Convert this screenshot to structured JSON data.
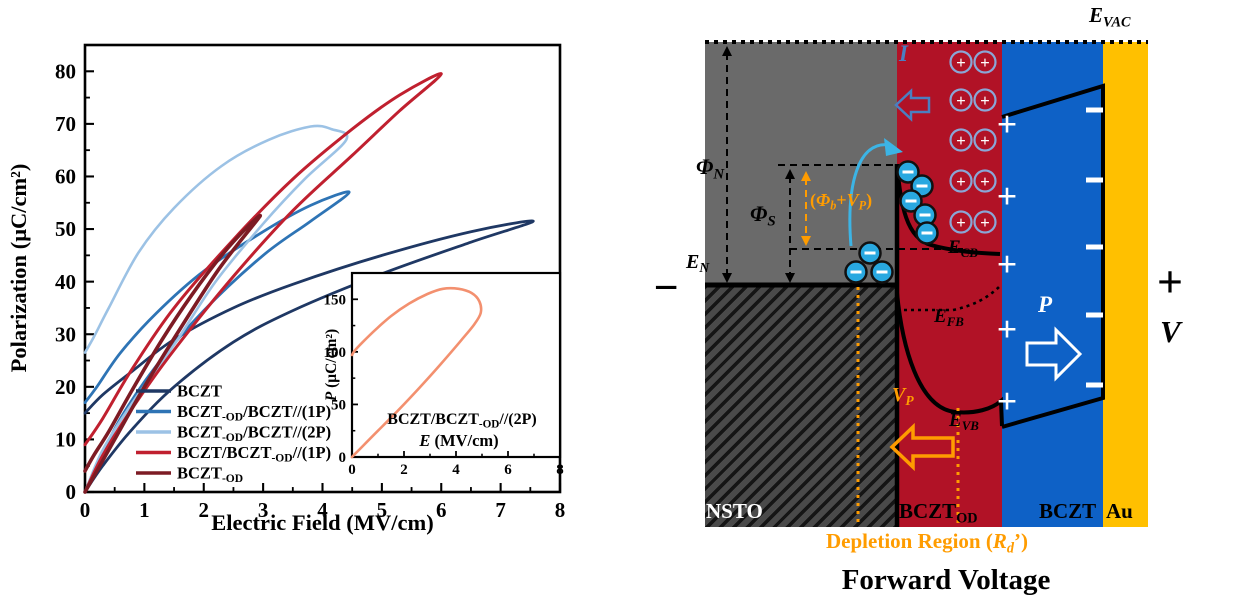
{
  "colors": {
    "nsto_gray": "#6a6a6a",
    "hatch_base": "#4a4a4a",
    "hatch_stripe": "#151515",
    "bczt_od_red": "#b11226",
    "bczt_blue": "#0e61c6",
    "au_gold": "#ffc000",
    "accent_orange": "#ff9c00",
    "electron_blue": "#29a8e0",
    "hole_ring": "#8aa6d6",
    "current_arrow_blue": "#4a7fc1",
    "navy": "#1f3864",
    "steel_blue": "#2e74b5",
    "light_blue": "#9cc2e5",
    "red": "#c0202f",
    "maroon": "#7d1b24",
    "salmon": "#f3906f"
  },
  "chart_data": [
    {
      "type": "line",
      "title": "",
      "xlabel": "Electric Field (MV/cm)",
      "ylabel": "Polarization (μC/cm²)",
      "xlim": [
        0,
        8
      ],
      "ylim": [
        0,
        85
      ],
      "xticks": [
        0,
        1,
        2,
        3,
        4,
        5,
        6,
        7,
        8
      ],
      "yticks": [
        0,
        10,
        20,
        30,
        40,
        50,
        60,
        70,
        80
      ],
      "grid": false,
      "legend_position": "lower left inside",
      "series": [
        {
          "name": "BCZT",
          "name_rich": [
            [
              "BCZT",
              0
            ]
          ],
          "color": "#1f3864",
          "width": 2.8,
          "loop": [
            [
              0,
              0
            ],
            [
              0.3,
              5
            ],
            [
              0.8,
              12
            ],
            [
              1.5,
              20
            ],
            [
              2.5,
              28.5
            ],
            [
              3.5,
              34.5
            ],
            [
              5,
              41.5
            ],
            [
              6.5,
              47.5
            ],
            [
              7.55,
              51.5
            ],
            [
              6.5,
              49.5
            ],
            [
              5,
              45
            ],
            [
              3.5,
              39.5
            ],
            [
              2.5,
              35
            ],
            [
              1.5,
              29
            ],
            [
              0.8,
              23
            ],
            [
              0.3,
              18.5
            ],
            [
              0,
              15
            ]
          ]
        },
        {
          "name": "BCZT-OD/BCZT//(1P)",
          "name_rich": [
            [
              "BCZT",
              0
            ],
            [
              "-OD",
              1
            ],
            [
              "/BCZT//(1P)",
              0
            ]
          ],
          "color": "#2e74b5",
          "width": 2.8,
          "loop": [
            [
              0,
              0
            ],
            [
              0.2,
              5
            ],
            [
              0.6,
              14
            ],
            [
              1.2,
              24
            ],
            [
              2,
              34.5
            ],
            [
              3,
              45
            ],
            [
              3.8,
              51.5
            ],
            [
              4.45,
              57
            ],
            [
              3.8,
              54.5
            ],
            [
              3,
              49.5
            ],
            [
              2,
              42
            ],
            [
              1.2,
              34
            ],
            [
              0.6,
              26.5
            ],
            [
              0.2,
              20
            ],
            [
              0,
              17
            ]
          ]
        },
        {
          "name": "BCZT-OD/BCZT//(2P)",
          "name_rich": [
            [
              "BCZT",
              0
            ],
            [
              "-OD",
              1
            ],
            [
              "/BCZT//(2P)",
              0
            ]
          ],
          "color": "#9cc2e5",
          "width": 2.6,
          "loop": [
            [
              0,
              0
            ],
            [
              0.3,
              8
            ],
            [
              0.8,
              17
            ],
            [
              1.5,
              28
            ],
            [
              2.2,
              40
            ],
            [
              3,
              51
            ],
            [
              3.7,
              59.5
            ],
            [
              4.4,
              67
            ],
            [
              4.15,
              69
            ],
            [
              3.8,
              69.5
            ],
            [
              3.1,
              67
            ],
            [
              2.3,
              62
            ],
            [
              1.5,
              54
            ],
            [
              0.9,
              45.5
            ],
            [
              0.4,
              35
            ],
            [
              0.15,
              29.5
            ],
            [
              0,
              26.5
            ]
          ]
        },
        {
          "name": "BCZT/BCZT-OD//(1P)",
          "name_rich": [
            [
              "BCZT/BCZT",
              0
            ],
            [
              "-OD",
              1
            ],
            [
              "//(1P)",
              0
            ]
          ],
          "color": "#c0202f",
          "width": 3.0,
          "loop": [
            [
              0,
              0
            ],
            [
              0.3,
              7
            ],
            [
              0.8,
              16
            ],
            [
              1.5,
              27
            ],
            [
              2.5,
              41
            ],
            [
              3.5,
              53.5
            ],
            [
              4.5,
              64
            ],
            [
              5.3,
              72.5
            ],
            [
              6.0,
              79.5
            ],
            [
              5.3,
              75.5
            ],
            [
              4.5,
              69
            ],
            [
              3.5,
              59.5
            ],
            [
              2.5,
              48
            ],
            [
              1.5,
              35
            ],
            [
              0.8,
              23.5
            ],
            [
              0.3,
              14
            ],
            [
              0,
              9
            ]
          ]
        },
        {
          "name": "BCZT-OD",
          "name_rich": [
            [
              "BCZT",
              0
            ],
            [
              "-OD",
              1
            ]
          ],
          "color": "#7d1b24",
          "width": 3.6,
          "loop": [
            [
              0,
              0
            ],
            [
              0.15,
              3
            ],
            [
              0.5,
              10
            ],
            [
              1,
              20
            ],
            [
              1.6,
              31
            ],
            [
              2.2,
              41.5
            ],
            [
              2.6,
              47.5
            ],
            [
              2.95,
              52.5
            ],
            [
              2.7,
              50
            ],
            [
              2.3,
              45
            ],
            [
              1.8,
              37.5
            ],
            [
              1.3,
              29
            ],
            [
              0.8,
              19.5
            ],
            [
              0.4,
              11.5
            ],
            [
              0.15,
              7
            ],
            [
              0,
              4
            ]
          ]
        }
      ]
    },
    {
      "type": "line",
      "inset": true,
      "label": "BCZT/BCZT-OD//(2P)",
      "label_rich": [
        [
          "BCZT/BCZT",
          0
        ],
        [
          "-OD",
          1
        ],
        [
          "//(2P)",
          0
        ]
      ],
      "xlabel": "E (MV/cm)",
      "xlabel_rich": [
        [
          "E",
          2
        ],
        [
          " (MV/cm)",
          0
        ]
      ],
      "ylabel": "P (μC/cm²)",
      "ylabel_rich": [
        [
          "P",
          2
        ],
        [
          " (μC/cm²)",
          0
        ]
      ],
      "xlim": [
        0,
        8
      ],
      "ylim": [
        0,
        175
      ],
      "xticks": [
        0,
        2,
        4,
        6,
        8
      ],
      "yticks": [
        0,
        50,
        100,
        150
      ],
      "series": [
        {
          "name": "BCZT/BCZT-OD//(2P)",
          "color": "#f3906f",
          "width": 2.6,
          "loop": [
            [
              0,
              0
            ],
            [
              0.4,
              10
            ],
            [
              1,
              25
            ],
            [
              1.8,
              45
            ],
            [
              2.6,
              66
            ],
            [
              3.4,
              88
            ],
            [
              4.2,
              111
            ],
            [
              4.7,
              126
            ],
            [
              4.95,
              137
            ],
            [
              4.9,
              148
            ],
            [
              4.6,
              156
            ],
            [
              4.1,
              160
            ],
            [
              3.5,
              160
            ],
            [
              2.9,
              155
            ],
            [
              2.2,
              146
            ],
            [
              1.5,
              134
            ],
            [
              0.9,
              121
            ],
            [
              0.4,
              109
            ],
            [
              0.1,
              101
            ],
            [
              0,
              97
            ]
          ]
        }
      ]
    }
  ],
  "diagram": {
    "caption": "Forward Voltage",
    "depletion_caption": "Depletion Region (Rd’)",
    "charge_plus": "+",
    "charge_minus": "−",
    "counts": {
      "hole_pairs": 5,
      "interface_plus": 5,
      "interface_minus": 5,
      "electrons_red": 5,
      "electrons_gray": 3
    },
    "labels": {
      "e_vac": [
        [
          "E",
          2
        ],
        [
          "VAC",
          3
        ]
      ],
      "phi_n": [
        [
          "Φ",
          2
        ],
        [
          "N",
          3
        ]
      ],
      "phi_s": [
        [
          "Φ",
          2
        ],
        [
          "S",
          3
        ]
      ],
      "barrier": [
        [
          "(",
          0
        ],
        [
          "Φ",
          2
        ],
        [
          "b",
          3
        ],
        [
          "+",
          0
        ],
        [
          "V",
          2
        ],
        [
          "P",
          3
        ],
        [
          ")",
          0
        ]
      ],
      "e_n": [
        [
          "E",
          2
        ],
        [
          "N",
          3
        ]
      ],
      "e_cb": [
        [
          "E",
          2
        ],
        [
          "CB",
          3
        ]
      ],
      "e_fb": [
        [
          "E",
          2
        ],
        [
          "FB",
          3
        ]
      ],
      "e_vb": [
        [
          "E",
          2
        ],
        [
          "VB",
          3
        ]
      ],
      "v_p": [
        [
          "V",
          2
        ],
        [
          "P",
          3
        ]
      ],
      "current": [
        [
          "I",
          2
        ]
      ],
      "polarization": [
        [
          "P",
          2
        ]
      ],
      "minus": [
        [
          "−",
          0
        ]
      ],
      "plus": [
        [
          "+",
          0
        ]
      ],
      "voltage": [
        [
          "V",
          2
        ]
      ],
      "nsto": [
        [
          "NSTO",
          0
        ]
      ],
      "bczt_od": [
        [
          "BCZT",
          0
        ],
        [
          "OD",
          1
        ]
      ],
      "bczt": [
        [
          "BCZT",
          0
        ]
      ],
      "au": [
        [
          "Au",
          0
        ]
      ],
      "depletion": [
        [
          "Depletion Region (",
          0
        ],
        [
          "R",
          2
        ],
        [
          "d",
          3
        ],
        [
          "’)",
          0
        ]
      ],
      "forward": [
        [
          "Forward Voltage",
          0
        ]
      ]
    }
  }
}
